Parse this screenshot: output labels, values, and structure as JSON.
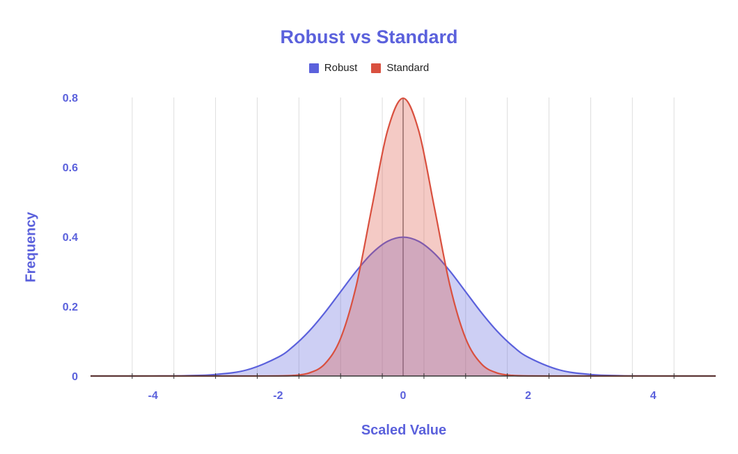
{
  "chart_data": {
    "type": "area",
    "title": "Robust vs Standard",
    "xlabel": "Scaled Value",
    "ylabel": "Frequency",
    "xlim": [
      -5,
      5
    ],
    "ylim": [
      0,
      0.8
    ],
    "x_ticks": [
      -4,
      -2,
      0,
      2,
      4
    ],
    "y_ticks": [
      0,
      0.2,
      0.4,
      0.6,
      0.8
    ],
    "y_tick_labels": [
      "0",
      "0.2",
      "0.4",
      "0.6",
      "0.8"
    ],
    "grid": true,
    "legend_position": "top-center",
    "x": [
      -5.0,
      -4.5,
      -4.0,
      -3.5,
      -3.0,
      -2.5,
      -2.0,
      -1.75,
      -1.5,
      -1.25,
      -1.0,
      -0.75,
      -0.5,
      -0.25,
      0.0,
      0.25,
      0.5,
      0.75,
      1.0,
      1.25,
      1.5,
      1.75,
      2.0,
      2.5,
      3.0,
      3.5,
      4.0,
      4.5,
      5.0
    ],
    "series": [
      {
        "name": "Robust",
        "color": "#5b61dc",
        "values": [
          0.0,
          0.0,
          0.0001,
          0.0009,
          0.0044,
          0.0175,
          0.054,
          0.0863,
          0.1295,
          0.1826,
          0.242,
          0.3011,
          0.3521,
          0.3867,
          0.3989,
          0.3867,
          0.3521,
          0.3011,
          0.242,
          0.1826,
          0.1295,
          0.0863,
          0.054,
          0.0175,
          0.0044,
          0.0009,
          0.0001,
          0.0,
          0.0
        ]
      },
      {
        "name": "Standard",
        "color": "#d9503f",
        "values": [
          0.0,
          0.0,
          0.0,
          0.0,
          0.0,
          0.0,
          0.0003,
          0.0017,
          0.0089,
          0.0352,
          0.108,
          0.2591,
          0.4839,
          0.7041,
          0.7979,
          0.7041,
          0.4839,
          0.2591,
          0.108,
          0.0352,
          0.0089,
          0.0017,
          0.0003,
          0.0,
          0.0,
          0.0,
          0.0,
          0.0,
          0.0
        ]
      }
    ]
  }
}
